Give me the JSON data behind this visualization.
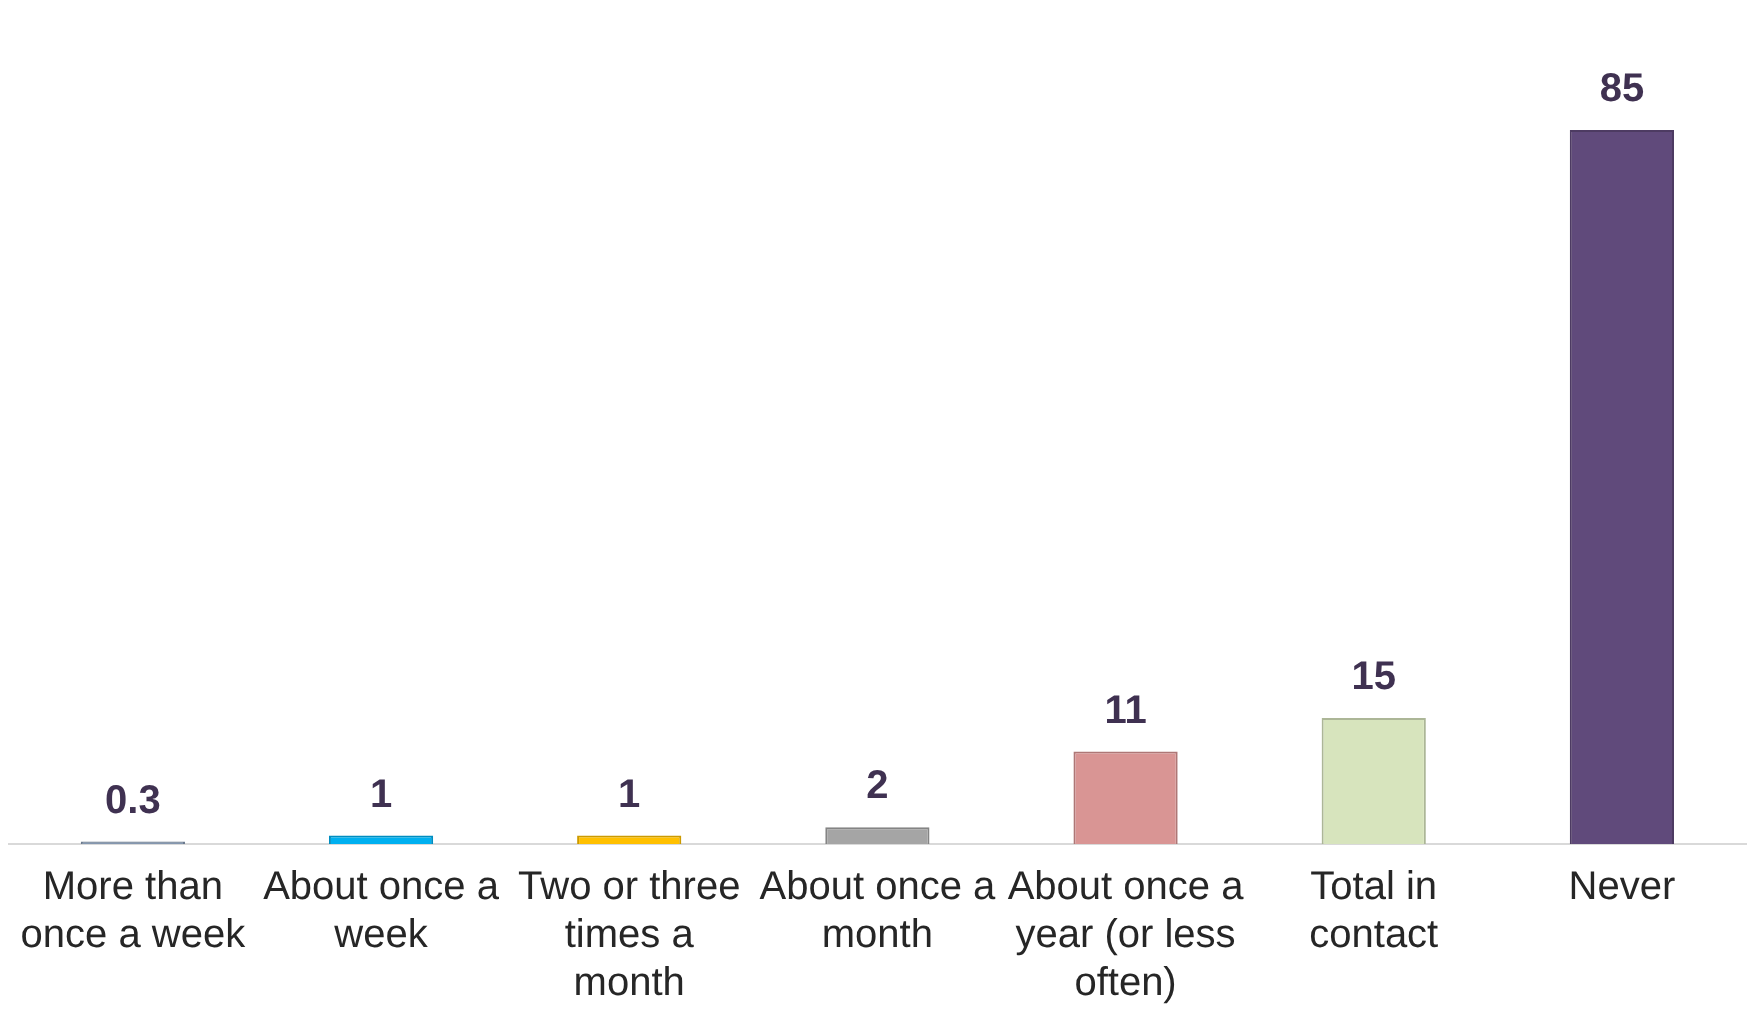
{
  "chart_data": {
    "type": "bar",
    "categories": [
      "More than once a week",
      "About once a week",
      "Two or three times a month",
      "About once a month",
      "About once a year (or less often)",
      "Total in contact",
      "Never"
    ],
    "values": [
      0.3,
      1,
      1,
      2,
      11,
      15,
      85
    ],
    "colors": [
      "#8497b0",
      "#00b0f0",
      "#ffc000",
      "#a5a5a5",
      "#d99594",
      "#d7e4bd",
      "#604a7b"
    ],
    "data_labels": true,
    "grid": false,
    "legend": false
  }
}
